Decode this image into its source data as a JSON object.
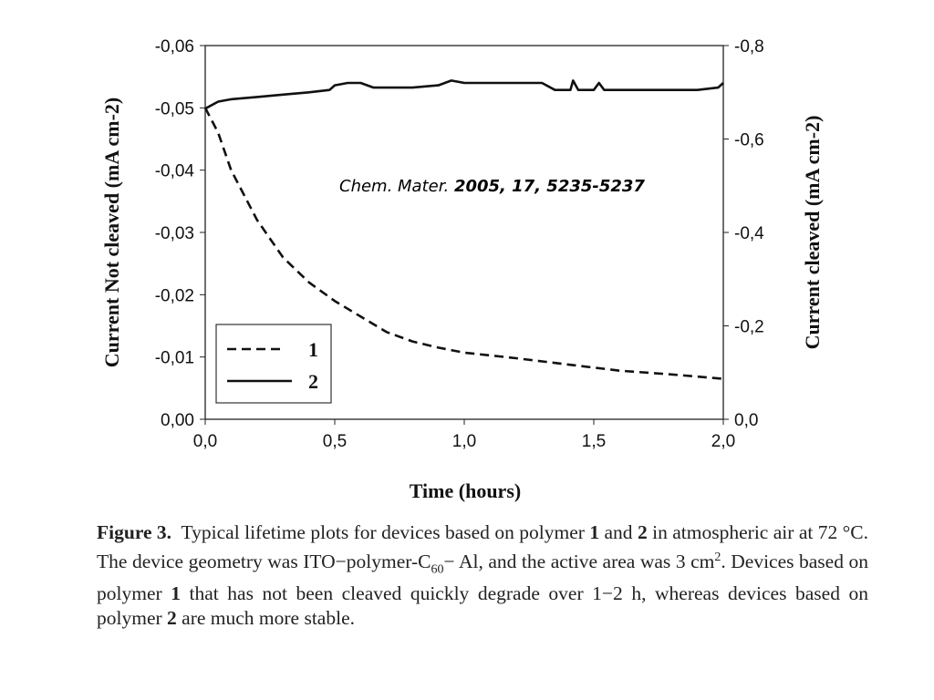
{
  "chart_data": {
    "type": "line",
    "xlabel": "Time (hours)",
    "ylabel_left": "Current Not cleaved (mA cm-2)",
    "ylabel_right": "Current cleaved (mA cm-2)",
    "xlim": [
      0,
      2
    ],
    "ylim_left": [
      0,
      -0.06
    ],
    "ylim_right": [
      0,
      -0.8
    ],
    "x_ticks": [
      "0,0",
      "0,5",
      "1,0",
      "1,5",
      "2,0"
    ],
    "y_ticks_left": [
      "0,00",
      "-0,01",
      "-0,02",
      "-0,03",
      "-0,04",
      "-0,05",
      "-0,06"
    ],
    "y_ticks_right": [
      "0,0",
      "-0,2",
      "-0,4",
      "-0,6",
      "-0,8"
    ],
    "grid": false,
    "legend_position": "bottom-left",
    "series": [
      {
        "name": "1",
        "axis": "left",
        "style": "dashed",
        "x": [
          0,
          0.05,
          0.1,
          0.15,
          0.2,
          0.3,
          0.4,
          0.5,
          0.6,
          0.7,
          0.8,
          0.9,
          1.0,
          1.2,
          1.4,
          1.6,
          1.8,
          2.0
        ],
        "y": [
          -0.05,
          -0.046,
          -0.04,
          -0.036,
          -0.032,
          -0.026,
          -0.022,
          -0.019,
          -0.0165,
          -0.014,
          -0.0125,
          -0.0115,
          -0.0107,
          -0.0098,
          -0.0088,
          -0.0078,
          -0.0072,
          -0.0065
        ]
      },
      {
        "name": "2",
        "axis": "right",
        "style": "solid",
        "x": [
          0,
          0.05,
          0.1,
          0.2,
          0.3,
          0.4,
          0.48,
          0.5,
          0.55,
          0.6,
          0.65,
          0.7,
          0.8,
          0.9,
          0.95,
          1.0,
          1.2,
          1.3,
          1.35,
          1.41,
          1.42,
          1.44,
          1.5,
          1.52,
          1.54,
          1.7,
          1.9,
          1.98,
          2.0
        ],
        "y": [
          -0.665,
          -0.68,
          -0.685,
          -0.69,
          -0.695,
          -0.7,
          -0.705,
          -0.715,
          -0.72,
          -0.72,
          -0.71,
          -0.71,
          -0.71,
          -0.715,
          -0.725,
          -0.72,
          -0.72,
          -0.72,
          -0.705,
          -0.705,
          -0.725,
          -0.705,
          -0.705,
          -0.72,
          -0.705,
          -0.705,
          -0.705,
          -0.71,
          -0.72
        ]
      }
    ]
  },
  "annotation": {
    "journal": "Chem. Mater.",
    "ref": "2005, 17, 5235-5237"
  },
  "caption": {
    "label": "Figure 3.",
    "t1": "Typical lifetime plots for devices based on polymer ",
    "b1": "1",
    "t2": " and ",
    "b2": "2",
    "t3": " in atmospheric air at 72 °C. The device geometry was ITO−polymer-C",
    "sub": "60",
    "t4": "− Al, and the active area was 3 cm",
    "sup": "2",
    "t5": ". Devices based on polymer ",
    "b3": "1",
    "t6": " that has not been cleaved quickly degrade over 1−2 h, whereas devices based on polymer ",
    "b4": "2",
    "t7": " are much more stable."
  }
}
